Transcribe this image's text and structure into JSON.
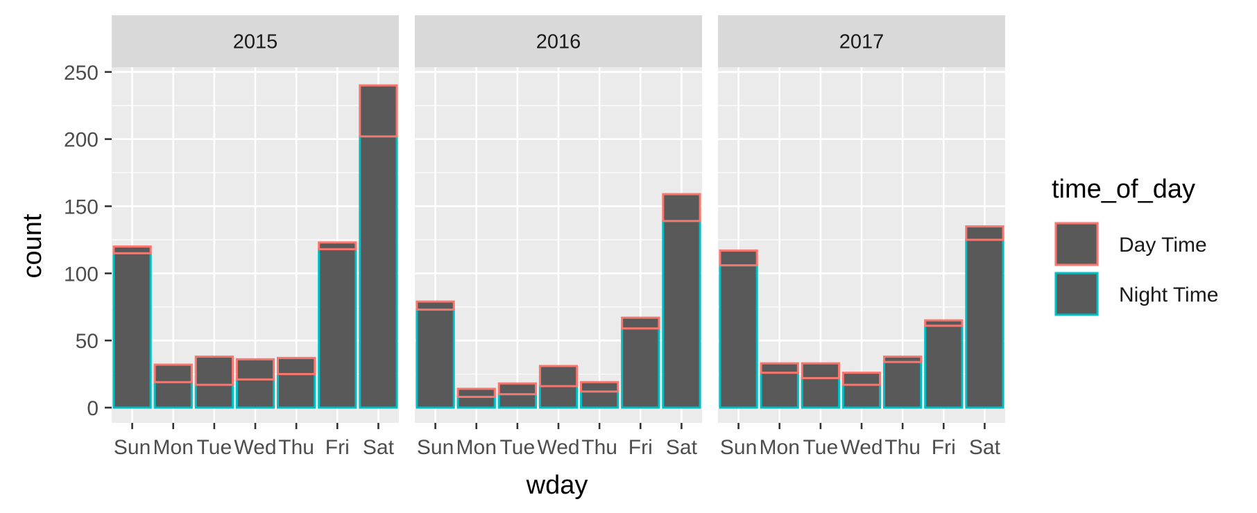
{
  "chart_data": {
    "type": "bar",
    "stacked": true,
    "facet_by": "year",
    "facets": [
      "2015",
      "2016",
      "2017"
    ],
    "categories": [
      "Sun",
      "Mon",
      "Tue",
      "Wed",
      "Thu",
      "Fri",
      "Sat"
    ],
    "xlabel": "wday",
    "ylabel": "count",
    "ylim": [
      0,
      262
    ],
    "yticks": [
      0,
      50,
      100,
      150,
      200,
      250
    ],
    "grid": true,
    "legend": {
      "title": "time_of_day",
      "position": "right",
      "entries": [
        {
          "name": "Day Time",
          "outline": "#F8766D"
        },
        {
          "name": "Night Time",
          "outline": "#00BFC4"
        }
      ]
    },
    "fill_color": "#595959",
    "series": [
      {
        "name": "Night Time",
        "color": "#00BFC4",
        "values": {
          "2015": [
            115,
            19,
            17,
            21,
            25,
            118,
            202
          ],
          "2016": [
            73,
            8,
            10,
            16,
            12,
            59,
            139
          ],
          "2017": [
            106,
            26,
            22,
            17,
            34,
            61,
            125
          ]
        }
      },
      {
        "name": "Day Time",
        "color": "#F8766D",
        "values": {
          "2015": [
            5,
            13,
            21,
            15,
            12,
            5,
            38
          ],
          "2016": [
            6,
            6,
            8,
            15,
            7,
            8,
            20
          ],
          "2017": [
            11,
            7,
            11,
            9,
            4,
            4,
            10
          ]
        }
      }
    ]
  }
}
